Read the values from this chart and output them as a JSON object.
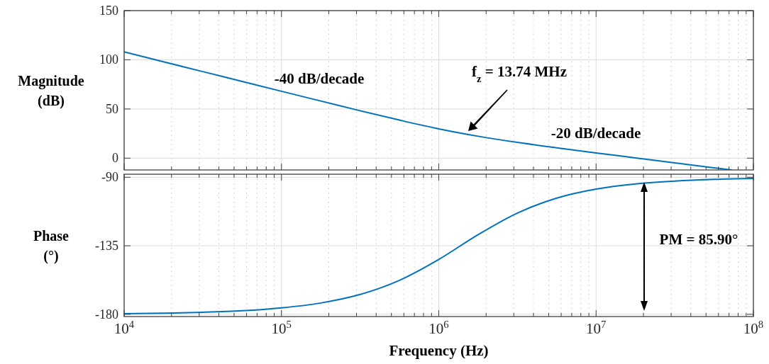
{
  "chart_data": [
    {
      "type": "line",
      "ylabel": "Magnitude (dB)",
      "log": "x",
      "grid": true,
      "tick_labels": "y",
      "xlim": [
        10000,
        100000000
      ],
      "xticks": [
        {
          "value": 10000,
          "label": null
        },
        {
          "value": 100000,
          "label": null
        },
        {
          "value": 1000000,
          "label": null
        },
        {
          "value": 10000000,
          "label": null
        },
        {
          "value": 100000000,
          "label": null
        }
      ],
      "ylim": [
        -12,
        150
      ],
      "yticks": [
        0,
        50,
        100,
        150
      ],
      "x": [
        10000,
        17783,
        31623,
        56234,
        100000,
        177828,
        316228,
        562341,
        1000000,
        1778279,
        3162278,
        5623413,
        10000000,
        17782794,
        31622777,
        56234133,
        73000000
      ],
      "series": [
        {
          "color": "#0072bd",
          "values": [
            108.0,
            98.0,
            88.0,
            78.0,
            68.0,
            58.1,
            48.2,
            38.7,
            29.8,
            22.3,
            16.0,
            10.5,
            5.3,
            0.3,
            -4.8,
            -9.8,
            -12.0
          ]
        }
      ],
      "annotations": [
        "-40 dB/decade",
        "f$_{z}$ = 13.74 MHz",
        "-20 dB/decade"
      ]
    },
    {
      "type": "line",
      "ylabel": "Phase (°)",
      "xlabel": "Frequency (Hz)",
      "log": "x",
      "grid": true,
      "xlim": [
        10000,
        100000000
      ],
      "xticks": [
        {
          "value": 10000,
          "label": "10$^{4}$"
        },
        {
          "value": 100000,
          "label": "10$^{5}$"
        },
        {
          "value": 1000000,
          "label": "10$^{6}$"
        },
        {
          "value": 10000000,
          "label": "10$^{7}$"
        },
        {
          "value": 100000000,
          "label": "10$^{8}$"
        }
      ],
      "ylim": [
        -181.5,
        -88
      ],
      "yticks": [
        -180,
        -135,
        -90
      ],
      "x": [
        10000,
        17783,
        31623,
        56234,
        100000,
        177828,
        316228,
        562341,
        1000000,
        1778279,
        3162278,
        5623413,
        10000000,
        17782794,
        31622777,
        56234133,
        100000000
      ],
      "series": [
        {
          "color": "#0072bd",
          "values": [
            -179.6,
            -179.3,
            -178.7,
            -177.7,
            -175.8,
            -172.6,
            -167.0,
            -157.7,
            -144.0,
            -127.7,
            -113.5,
            -103.7,
            -97.8,
            -94.4,
            -92.5,
            -91.4,
            -90.8
          ]
        }
      ],
      "annotations": [
        "PM = 85.90°"
      ]
    }
  ]
}
